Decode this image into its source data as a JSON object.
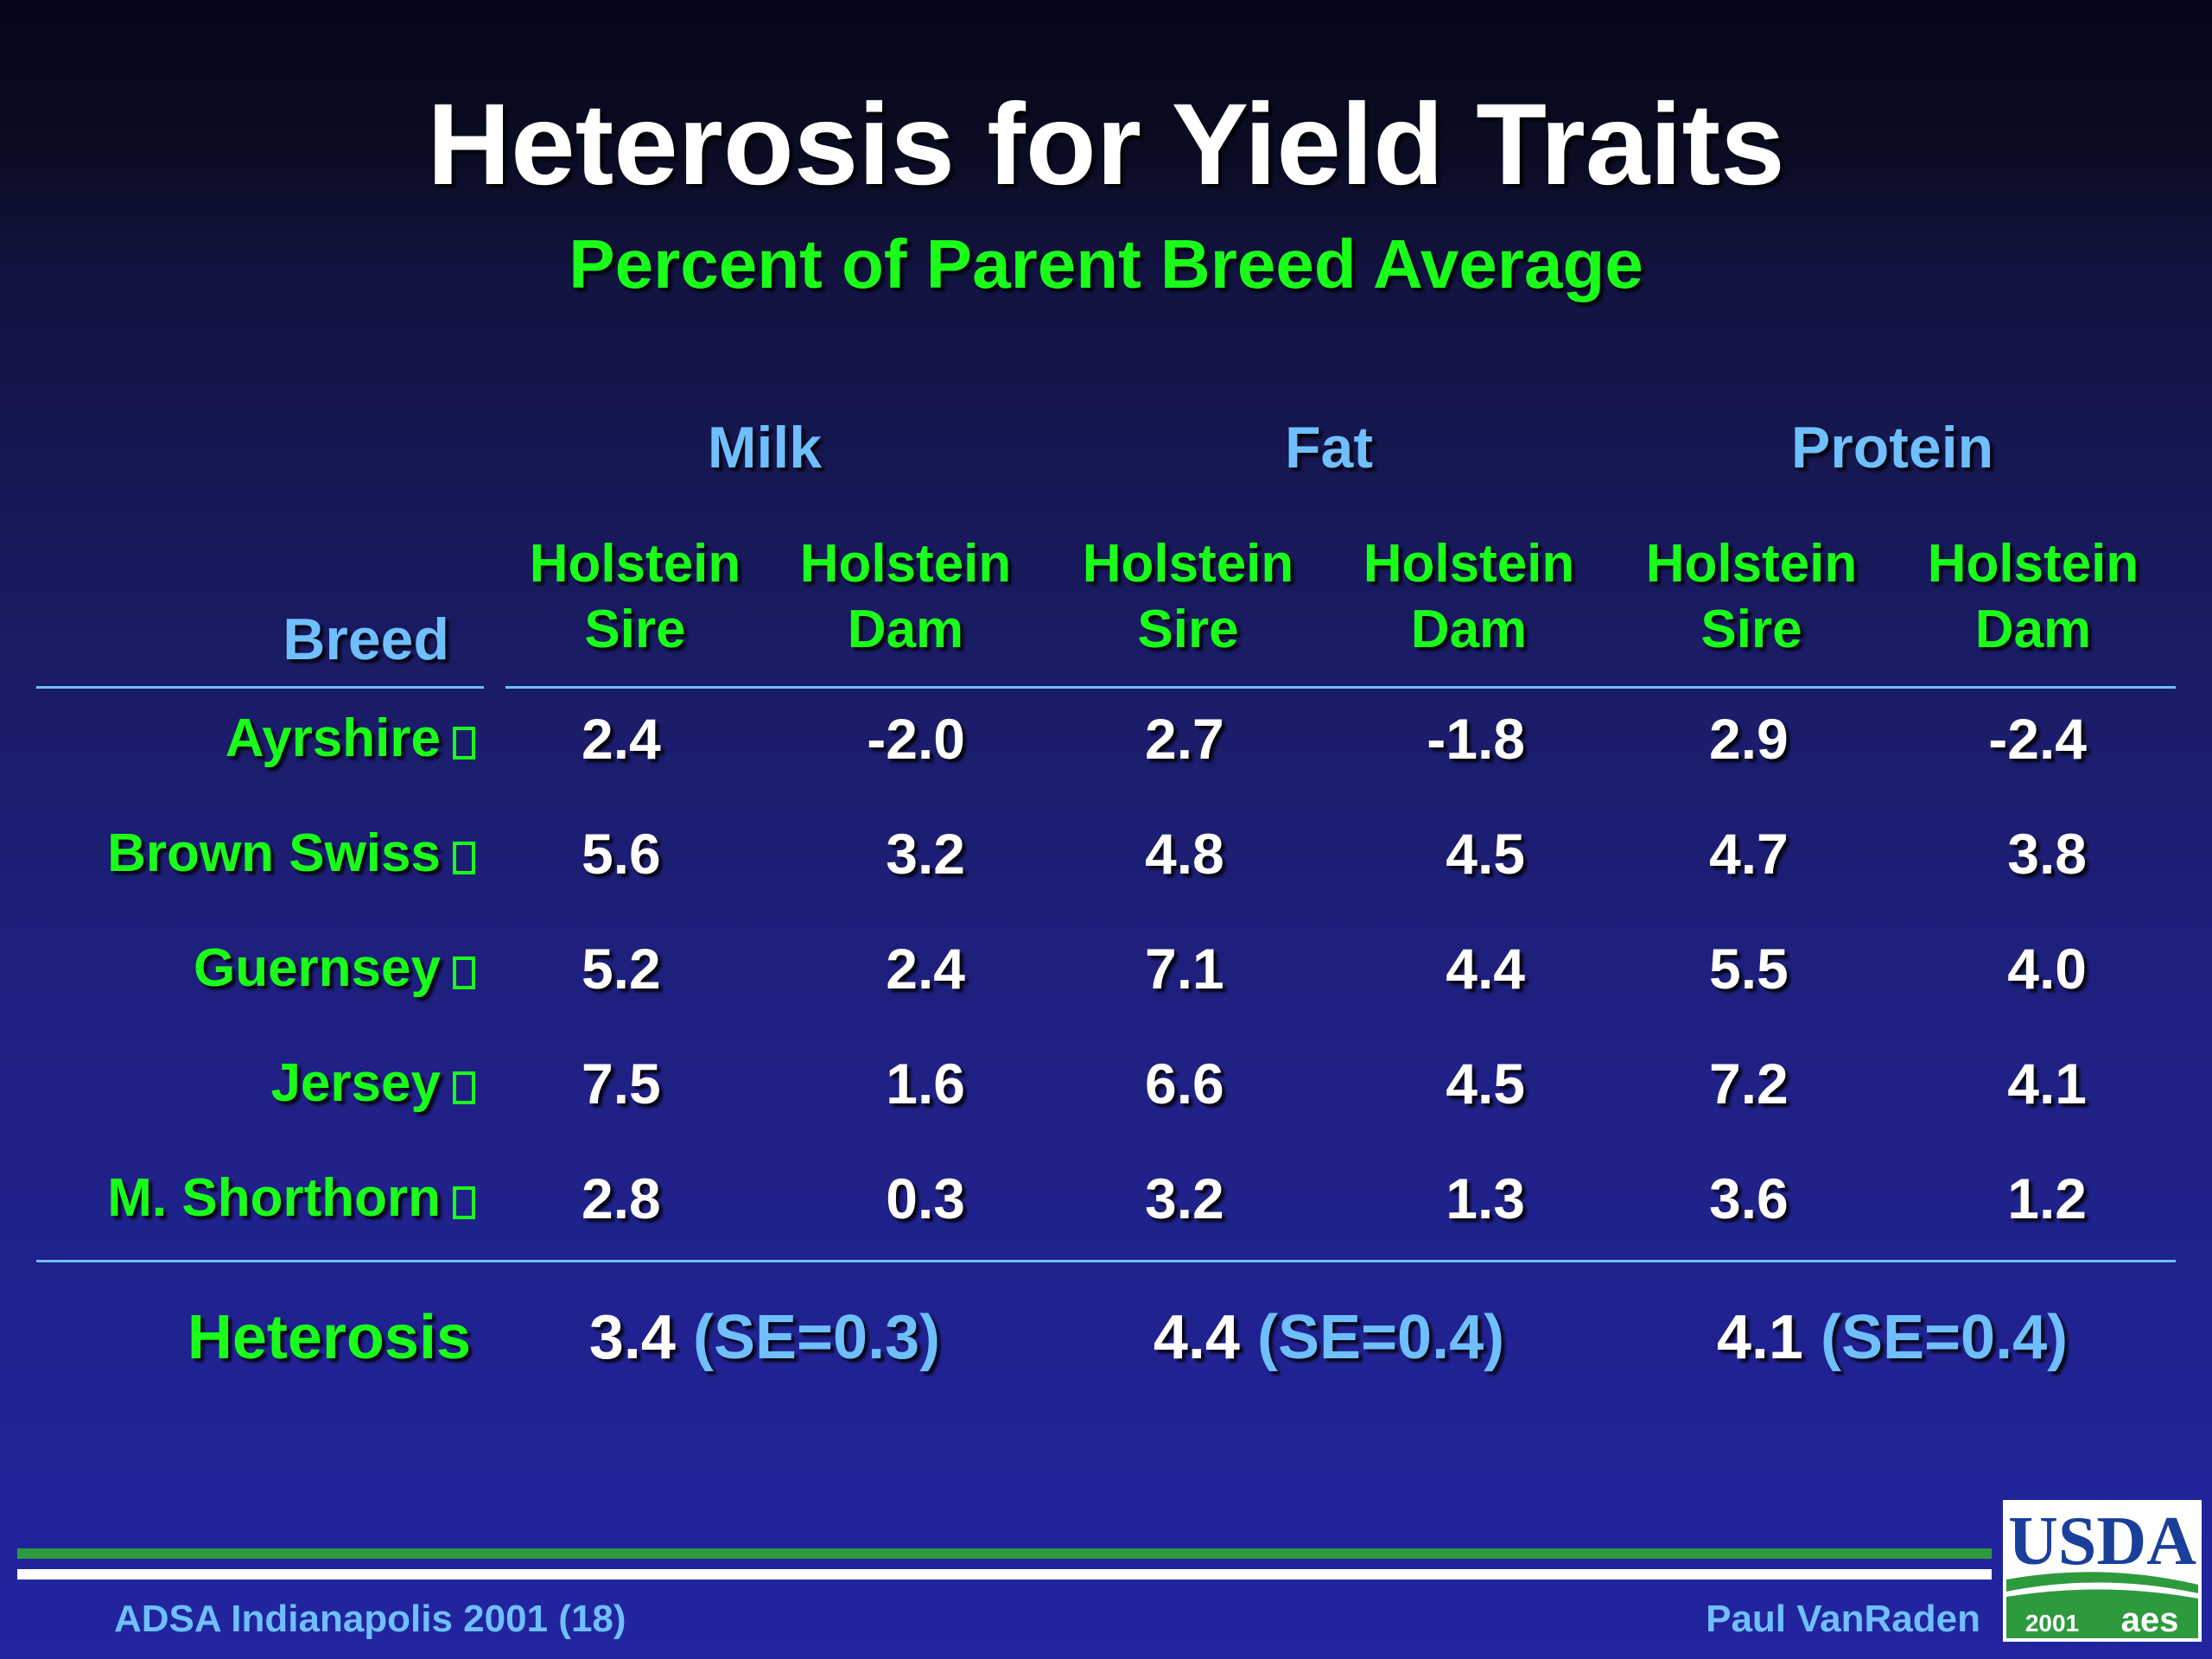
{
  "slide": {
    "title": "Heterosis for Yield Traits",
    "subtitle": "Percent of Parent Breed Average"
  },
  "table": {
    "breed_header": "Breed",
    "traits": [
      "Milk",
      "Fat",
      "Protein"
    ],
    "column_headers": [
      {
        "line1": "Holstein",
        "line2": "Sire"
      },
      {
        "line1": "Holstein",
        "line2": "Dam"
      },
      {
        "line1": "Holstein",
        "line2": "Sire"
      },
      {
        "line1": "Holstein",
        "line2": "Dam"
      },
      {
        "line1": "Holstein",
        "line2": "Sire"
      },
      {
        "line1": "Holstein",
        "line2": "Dam"
      }
    ],
    "rows": [
      {
        "breed": "Ayrshire",
        "values": [
          "2.4",
          "-2.0",
          "2.7",
          "-1.8",
          "2.9",
          "-2.4"
        ]
      },
      {
        "breed": "Brown Swiss",
        "values": [
          "5.6",
          "3.2",
          "4.8",
          "4.5",
          "4.7",
          "3.8"
        ]
      },
      {
        "breed": "Guernsey",
        "values": [
          "5.2",
          "2.4",
          "7.1",
          "4.4",
          "5.5",
          "4.0"
        ]
      },
      {
        "breed": "Jersey",
        "values": [
          "7.5",
          "1.6",
          "6.6",
          "4.5",
          "7.2",
          "4.1"
        ]
      },
      {
        "breed": "M. Shorthorn",
        "values": [
          "2.8",
          "0.3",
          "3.2",
          "1.3",
          "3.6",
          "1.2"
        ]
      }
    ],
    "heterosis": {
      "label": "Heterosis",
      "values": [
        {
          "value": "3.4",
          "se": "(SE=0.3)"
        },
        {
          "value": "4.4",
          "se": "(SE=0.4)"
        },
        {
          "value": "4.1",
          "se": "(SE=0.4)"
        }
      ]
    }
  },
  "footer": {
    "left": "ADSA Indianapolis 2001 (18)",
    "right": "Paul VanRaden"
  },
  "logo": {
    "text": "USDA",
    "year": "2001",
    "mark": "aes"
  },
  "colors": {
    "title": "#ffffff",
    "green": "#1aff1a",
    "blue": "#6fbfff",
    "usda_green": "#2e9a3e",
    "usda_blue": "#1a3f9a"
  }
}
